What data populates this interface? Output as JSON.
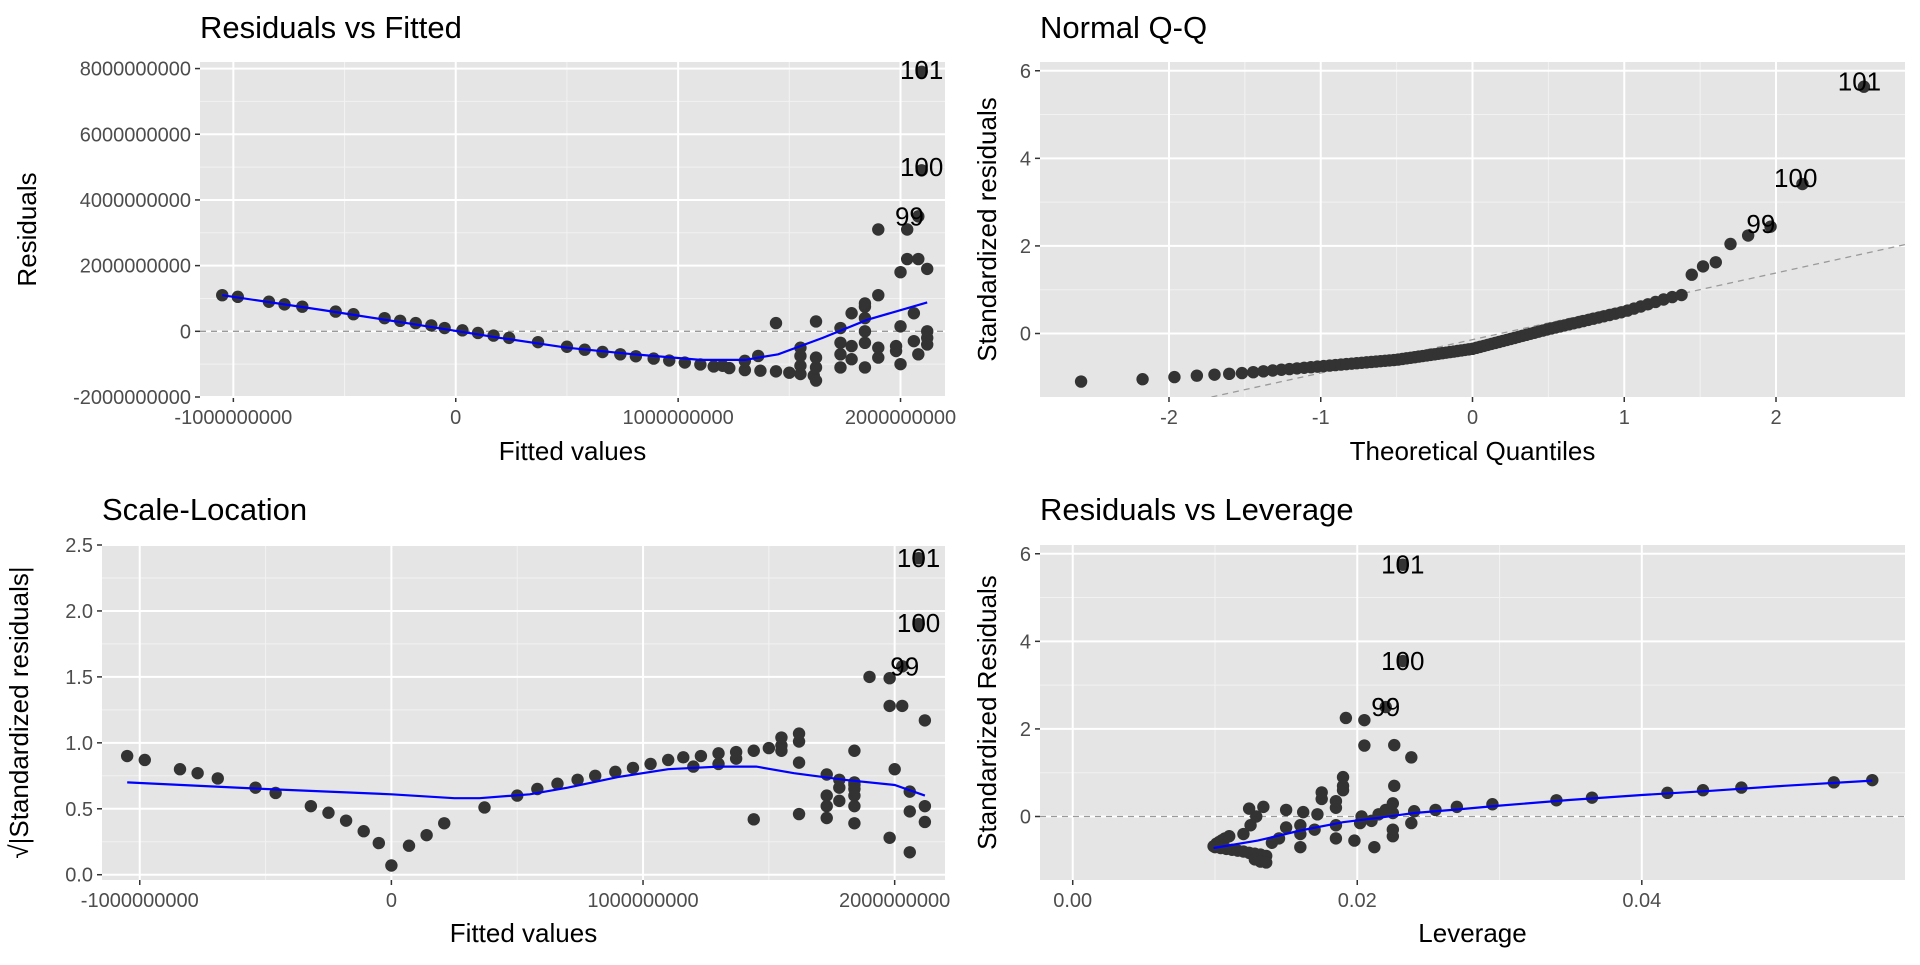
{
  "chart_data": [
    {
      "id": "resid-fitted",
      "type": "scatter",
      "title": "Residuals vs Fitted",
      "xlabel": "Fitted values",
      "ylabel": "Residuals",
      "xlim": [
        -1150000000,
        2200000000
      ],
      "ylim": [
        -2000000000,
        8200000000
      ],
      "xticks": [
        -1000000000,
        0,
        1000000000,
        2000000000
      ],
      "xtick_labels": [
        "-1000000000",
        "0",
        "1000000000",
        "2000000000"
      ],
      "yticks": [
        -2000000000,
        0,
        2000000000,
        4000000000,
        6000000000,
        8000000000
      ],
      "ytick_labels": [
        "-2000000000",
        "0",
        "2000000000",
        "4000000000",
        "6000000000",
        "8000000000"
      ],
      "hline": 0,
      "points": [
        [
          -1050000000,
          1100000000
        ],
        [
          -980000000,
          1050000000
        ],
        [
          -840000000,
          900000000
        ],
        [
          -770000000,
          820000000
        ],
        [
          -690000000,
          750000000
        ],
        [
          -540000000,
          600000000
        ],
        [
          -460000000,
          520000000
        ],
        [
          -320000000,
          400000000
        ],
        [
          -250000000,
          320000000
        ],
        [
          -180000000,
          250000000
        ],
        [
          -110000000,
          180000000
        ],
        [
          -50000000,
          100000000
        ],
        [
          30000000,
          30000000
        ],
        [
          100000000,
          -50000000
        ],
        [
          170000000,
          -130000000
        ],
        [
          240000000,
          -200000000
        ],
        [
          370000000,
          -330000000
        ],
        [
          500000000,
          -470000000
        ],
        [
          580000000,
          -560000000
        ],
        [
          660000000,
          -630000000
        ],
        [
          740000000,
          -700000000
        ],
        [
          810000000,
          -760000000
        ],
        [
          890000000,
          -830000000
        ],
        [
          960000000,
          -890000000
        ],
        [
          1030000000,
          -950000000
        ],
        [
          1100000000,
          -1010000000
        ],
        [
          1160000000,
          -1070000000
        ],
        [
          1230000000,
          -1120000000
        ],
        [
          1300000000,
          -1180000000
        ],
        [
          1370000000,
          -1200000000
        ],
        [
          1440000000,
          -1220000000
        ],
        [
          1500000000,
          -1260000000
        ],
        [
          1550000000,
          -1300000000
        ],
        [
          1610000000,
          -1350000000
        ],
        [
          1200000000,
          -1050000000
        ],
        [
          1300000000,
          -900000000
        ],
        [
          1360000000,
          -750000000
        ],
        [
          1440000000,
          250000000
        ],
        [
          1550000000,
          -1050000000
        ],
        [
          1550000000,
          -750000000
        ],
        [
          1550000000,
          -500000000
        ],
        [
          1620000000,
          -1500000000
        ],
        [
          1620000000,
          -1100000000
        ],
        [
          1620000000,
          -800000000
        ],
        [
          1620000000,
          300000000
        ],
        [
          1730000000,
          -1100000000
        ],
        [
          1730000000,
          -700000000
        ],
        [
          1730000000,
          -350000000
        ],
        [
          1730000000,
          100000000
        ],
        [
          1780000000,
          -850000000
        ],
        [
          1780000000,
          -450000000
        ],
        [
          1780000000,
          550000000
        ],
        [
          1840000000,
          -1100000000
        ],
        [
          1840000000,
          -350000000
        ],
        [
          1840000000,
          0
        ],
        [
          1840000000,
          400000000
        ],
        [
          1840000000,
          750000000
        ],
        [
          1840000000,
          850000000
        ],
        [
          1900000000,
          -800000000
        ],
        [
          1900000000,
          -500000000
        ],
        [
          1900000000,
          1100000000
        ],
        [
          1900000000,
          3100000000
        ],
        [
          1980000000,
          -600000000
        ],
        [
          1980000000,
          -450000000
        ],
        [
          2000000000,
          -1000000000
        ],
        [
          2000000000,
          150000000
        ],
        [
          2000000000,
          1800000000
        ],
        [
          2030000000,
          2200000000
        ],
        [
          2030000000,
          3100000000
        ],
        [
          2060000000,
          -300000000
        ],
        [
          2060000000,
          550000000
        ],
        [
          2080000000,
          -700000000
        ],
        [
          2080000000,
          2200000000
        ],
        [
          2080000000,
          3500000000
        ],
        [
          2120000000,
          -200000000
        ],
        [
          2120000000,
          -400000000
        ],
        [
          2120000000,
          0
        ],
        [
          2120000000,
          1900000000
        ],
        [
          2095000000,
          4900000000
        ],
        [
          2095000000,
          7900000000
        ]
      ],
      "smooth": [
        [
          -1050000000,
          1100000000
        ],
        [
          -600000000,
          650000000
        ],
        [
          -200000000,
          230000000
        ],
        [
          200000000,
          -200000000
        ],
        [
          500000000,
          -500000000
        ],
        [
          800000000,
          -700000000
        ],
        [
          1100000000,
          -870000000
        ],
        [
          1300000000,
          -870000000
        ],
        [
          1450000000,
          -700000000
        ],
        [
          1650000000,
          -200000000
        ],
        [
          1850000000,
          350000000
        ],
        [
          2120000000,
          880000000
        ]
      ],
      "labels": [
        {
          "text": "101",
          "x": 2095000000,
          "y": 7950000000
        },
        {
          "text": "100",
          "x": 2095000000,
          "y": 5000000000
        },
        {
          "text": "99",
          "x": 2040000000,
          "y": 3500000000
        }
      ]
    },
    {
      "id": "normal-qq",
      "type": "scatter",
      "title": "Normal Q-Q",
      "xlabel": "Theoretical Quantiles",
      "ylabel": "Standardized residuals",
      "xlim": [
        -2.85,
        2.85
      ],
      "ylim": [
        -1.45,
        6.2
      ],
      "xticks": [
        -2,
        -1,
        0,
        1,
        2
      ],
      "xtick_labels": [
        "-2",
        "-1",
        "0",
        "1",
        "2"
      ],
      "yticks": [
        0,
        2,
        4,
        6
      ],
      "ytick_labels": [
        "0",
        "2",
        "4",
        "6"
      ],
      "refline": [
        [
          -1.72,
          -1.45
        ],
        [
          2.85,
          2.03
        ]
      ],
      "qq_points": true,
      "labels": [
        {
          "text": "101",
          "x": 2.55,
          "y": 5.75
        },
        {
          "text": "100",
          "x": 2.13,
          "y": 3.55
        },
        {
          "text": "99",
          "x": 1.9,
          "y": 2.5
        }
      ]
    },
    {
      "id": "scale-location",
      "type": "scatter",
      "title": "Scale-Location",
      "xlabel": "Fitted values",
      "ylabel": "√|Standardized residuals|",
      "xlim": [
        -1150000000,
        2200000000
      ],
      "ylim": [
        -0.04,
        2.5
      ],
      "xticks": [
        -1000000000,
        0,
        1000000000,
        2000000000
      ],
      "xtick_labels": [
        "-1000000000",
        "0",
        "1000000000",
        "2000000000"
      ],
      "yticks": [
        0,
        0.5,
        1,
        1.5,
        2,
        2.5
      ],
      "ytick_labels": [
        "0.0",
        "0.5",
        "1.0",
        "1.5",
        "2.0",
        "2.5"
      ],
      "points": [
        [
          -1050000000,
          0.9
        ],
        [
          -980000000,
          0.87
        ],
        [
          -840000000,
          0.8
        ],
        [
          -770000000,
          0.77
        ],
        [
          -690000000,
          0.73
        ],
        [
          -540000000,
          0.66
        ],
        [
          -460000000,
          0.62
        ],
        [
          -320000000,
          0.52
        ],
        [
          -250000000,
          0.47
        ],
        [
          -180000000,
          0.41
        ],
        [
          -110000000,
          0.33
        ],
        [
          -50000000,
          0.24
        ],
        [
          0,
          0.07
        ],
        [
          70000000,
          0.22
        ],
        [
          140000000,
          0.3
        ],
        [
          210000000,
          0.39
        ],
        [
          370000000,
          0.51
        ],
        [
          500000000,
          0.6
        ],
        [
          580000000,
          0.65
        ],
        [
          660000000,
          0.69
        ],
        [
          740000000,
          0.72
        ],
        [
          810000000,
          0.75
        ],
        [
          890000000,
          0.78
        ],
        [
          960000000,
          0.81
        ],
        [
          1030000000,
          0.84
        ],
        [
          1100000000,
          0.87
        ],
        [
          1160000000,
          0.89
        ],
        [
          1230000000,
          0.9
        ],
        [
          1300000000,
          0.92
        ],
        [
          1370000000,
          0.93
        ],
        [
          1440000000,
          0.94
        ],
        [
          1500000000,
          0.96
        ],
        [
          1550000000,
          0.98
        ],
        [
          1620000000,
          1.01
        ],
        [
          1550000000,
          1.04
        ],
        [
          1620000000,
          1.07
        ],
        [
          1200000000,
          0.82
        ],
        [
          1300000000,
          0.84
        ],
        [
          1370000000,
          0.88
        ],
        [
          1440000000,
          0.42
        ],
        [
          1550000000,
          0.94
        ],
        [
          1620000000,
          0.85
        ],
        [
          1620000000,
          0.46
        ],
        [
          1730000000,
          0.76
        ],
        [
          1730000000,
          0.6
        ],
        [
          1730000000,
          0.52
        ],
        [
          1730000000,
          0.43
        ],
        [
          1780000000,
          0.66
        ],
        [
          1780000000,
          0.72
        ],
        [
          1780000000,
          0.56
        ],
        [
          1840000000,
          0.7
        ],
        [
          1840000000,
          0.65
        ],
        [
          1840000000,
          0.6
        ],
        [
          1840000000,
          0.39
        ],
        [
          1840000000,
          0.52
        ],
        [
          1840000000,
          0.68
        ],
        [
          1840000000,
          0.94
        ],
        [
          1900000000,
          1.5
        ],
        [
          1980000000,
          1.49
        ],
        [
          1980000000,
          1.28
        ],
        [
          1980000000,
          0.28
        ],
        [
          2000000000,
          0.8
        ],
        [
          2030000000,
          1.58
        ],
        [
          2030000000,
          1.28
        ],
        [
          2060000000,
          0.17
        ],
        [
          2060000000,
          0.48
        ],
        [
          2060000000,
          0.63
        ],
        [
          2120000000,
          1.17
        ],
        [
          2120000000,
          0.52
        ],
        [
          2120000000,
          0.4
        ],
        [
          2095000000,
          1.9
        ],
        [
          2095000000,
          2.4
        ]
      ],
      "smooth": [
        [
          -1050000000,
          0.7
        ],
        [
          -500000000,
          0.65
        ],
        [
          0,
          0.61
        ],
        [
          250000000,
          0.58
        ],
        [
          350000000,
          0.58
        ],
        [
          550000000,
          0.61
        ],
        [
          700000000,
          0.66
        ],
        [
          900000000,
          0.74
        ],
        [
          1100000000,
          0.8
        ],
        [
          1300000000,
          0.82
        ],
        [
          1450000000,
          0.82
        ],
        [
          1600000000,
          0.77
        ],
        [
          1800000000,
          0.72
        ],
        [
          2000000000,
          0.68
        ],
        [
          2120000000,
          0.6
        ]
      ],
      "labels": [
        {
          "text": "101",
          "x": 2095000000,
          "y": 2.4
        },
        {
          "text": "100",
          "x": 2095000000,
          "y": 1.91
        },
        {
          "text": "99",
          "x": 2040000000,
          "y": 1.58
        }
      ]
    },
    {
      "id": "resid-leverage",
      "type": "scatter",
      "title": "Residuals vs Leverage",
      "xlabel": "Leverage",
      "ylabel": "Standardized Residuals",
      "xlim": [
        -0.0023,
        0.0585
      ],
      "ylim": [
        -1.45,
        6.2
      ],
      "xticks": [
        0,
        0.02,
        0.04
      ],
      "xtick_labels": [
        "0.00",
        "0.02",
        "0.04"
      ],
      "yticks": [
        0,
        2,
        4,
        6
      ],
      "ytick_labels": [
        "0",
        "2",
        "4",
        "6"
      ],
      "hline": 0,
      "points": [
        [
          0.0099,
          -0.68
        ],
        [
          0.0101,
          -0.62
        ],
        [
          0.0103,
          -0.58
        ],
        [
          0.0105,
          -0.54
        ],
        [
          0.0107,
          -0.5
        ],
        [
          0.011,
          -0.45
        ],
        [
          0.01,
          -0.7
        ],
        [
          0.0104,
          -0.72
        ],
        [
          0.0108,
          -0.74
        ],
        [
          0.0112,
          -0.76
        ],
        [
          0.0116,
          -0.78
        ],
        [
          0.012,
          -0.8
        ],
        [
          0.0124,
          -0.83
        ],
        [
          0.0128,
          -0.85
        ],
        [
          0.0132,
          -0.87
        ],
        [
          0.0136,
          -0.9
        ],
        [
          0.0128,
          -0.98
        ],
        [
          0.0132,
          -1.03
        ],
        [
          0.0136,
          -1.05
        ],
        [
          0.012,
          -0.4
        ],
        [
          0.0125,
          -0.2
        ],
        [
          0.0129,
          0.0
        ],
        [
          0.0124,
          0.18
        ],
        [
          0.0134,
          0.22
        ],
        [
          0.014,
          -0.6
        ],
        [
          0.0145,
          -0.5
        ],
        [
          0.015,
          -0.25
        ],
        [
          0.015,
          0.15
        ],
        [
          0.016,
          -0.7
        ],
        [
          0.016,
          -0.4
        ],
        [
          0.016,
          -0.2
        ],
        [
          0.0162,
          0.1
        ],
        [
          0.017,
          -0.3
        ],
        [
          0.0172,
          0.05
        ],
        [
          0.0175,
          0.4
        ],
        [
          0.0175,
          0.55
        ],
        [
          0.0185,
          -0.5
        ],
        [
          0.0185,
          -0.2
        ],
        [
          0.0185,
          0.2
        ],
        [
          0.0185,
          0.35
        ],
        [
          0.019,
          0.6
        ],
        [
          0.019,
          0.7
        ],
        [
          0.019,
          0.9
        ],
        [
          0.0192,
          2.25
        ],
        [
          0.0198,
          -0.55
        ],
        [
          0.0202,
          -0.15
        ],
        [
          0.0203,
          0.0
        ],
        [
          0.0205,
          2.2
        ],
        [
          0.0205,
          1.62
        ],
        [
          0.021,
          -0.1
        ],
        [
          0.0212,
          -0.7
        ],
        [
          0.0215,
          0.05
        ],
        [
          0.022,
          0.15
        ],
        [
          0.0225,
          -0.45
        ],
        [
          0.0225,
          -0.3
        ],
        [
          0.0225,
          0.08
        ],
        [
          0.0225,
          0.3
        ],
        [
          0.0226,
          0.7
        ],
        [
          0.0226,
          1.63
        ],
        [
          0.0238,
          -0.15
        ],
        [
          0.0238,
          1.35
        ],
        [
          0.024,
          0.12
        ],
        [
          0.0255,
          0.15
        ],
        [
          0.027,
          0.22
        ],
        [
          0.0295,
          0.28
        ],
        [
          0.034,
          0.37
        ],
        [
          0.0365,
          0.43
        ],
        [
          0.0418,
          0.54
        ],
        [
          0.0443,
          0.6
        ],
        [
          0.047,
          0.66
        ],
        [
          0.0535,
          0.78
        ],
        [
          0.0562,
          0.83
        ],
        [
          0.0232,
          3.55
        ],
        [
          0.0232,
          5.75
        ],
        [
          0.022,
          2.5
        ]
      ],
      "smooth": [
        [
          0.0099,
          -0.72
        ],
        [
          0.013,
          -0.55
        ],
        [
          0.016,
          -0.32
        ],
        [
          0.019,
          -0.13
        ],
        [
          0.0215,
          -0.03
        ],
        [
          0.024,
          0.08
        ],
        [
          0.027,
          0.16
        ],
        [
          0.03,
          0.25
        ],
        [
          0.035,
          0.38
        ],
        [
          0.04,
          0.49
        ],
        [
          0.045,
          0.59
        ],
        [
          0.05,
          0.7
        ],
        [
          0.0562,
          0.82
        ]
      ],
      "labels": [
        {
          "text": "101",
          "x": 0.0232,
          "y": 5.75
        },
        {
          "text": "100",
          "x": 0.0232,
          "y": 3.55
        },
        {
          "text": "99",
          "x": 0.022,
          "y": 2.5
        }
      ]
    }
  ]
}
